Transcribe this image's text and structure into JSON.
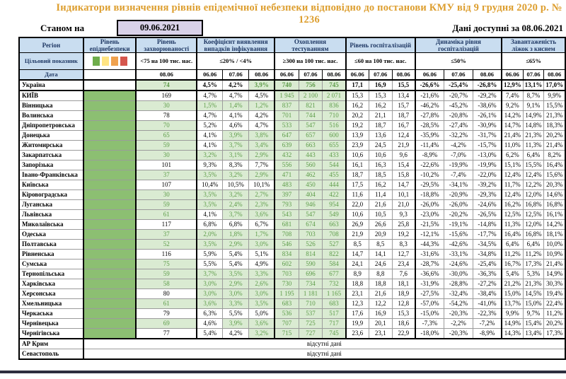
{
  "title": "Індикатори визначення рівнів епідемічної небезпеки відповідно до постанови КМУ від 9 грудня 2020 р. № 1236",
  "as_of": {
    "label": "Станом на",
    "date": "09.06.2021"
  },
  "available": {
    "label": "Дані доступні за",
    "date": "08.06.2021"
  },
  "colors": {
    "title_orange": "#dd9e2e",
    "header_blue": "#c9ddf0",
    "header_text_navy": "#1f3864",
    "date_box_purple": "#d9d2e9",
    "danger_column_green": "#8cbf72",
    "highlight_cell_green": "#daebd2",
    "highlight_text_green": "#5d9c49",
    "bottom_line": "#2e2e3e"
  },
  "columns": {
    "region": "Регіон",
    "danger": "Рівень епіднебезпеки",
    "target_row_label": "Цільовий показник",
    "date_row_label": "Дата",
    "groups": [
      {
        "key": "incidence",
        "name": "Рівень захворюваності",
        "target": "<75 на 100 тис. нас.",
        "dates": [
          "08.06"
        ]
      },
      {
        "key": "coef",
        "name": "Коефіцієнт виявлення випадків інфікування",
        "target": "≤20% / <4%",
        "dates": [
          "06.06",
          "07.06",
          "08.06"
        ]
      },
      {
        "key": "testing",
        "name": "Охоплення тестуванням",
        "target": "≥300 на 100 тис. нас.",
        "dates": [
          "06.06",
          "07.06",
          "08.06"
        ]
      },
      {
        "key": "hosp",
        "name": "Рівень госпіталізацій",
        "target": "≤60 на 100 тис. нас.",
        "dates": [
          "06.06",
          "07.06",
          "08.06"
        ]
      },
      {
        "key": "dynamics",
        "name": "Динаміка рівня госпіталізацій",
        "target": "≤50%",
        "dates": [
          "06.06",
          "07.06",
          "08.06"
        ]
      },
      {
        "key": "beds",
        "name": "Завантаженість ліжок з киснем",
        "target": "≤65%",
        "dates": [
          "06.06",
          "07.06",
          "08.06"
        ]
      }
    ]
  },
  "legend": {
    "names": [
      "green-level",
      "yellow-level",
      "orange-level",
      "red-level"
    ],
    "colors": [
      "#6fad4b",
      "#ffe483",
      "#efa14e",
      "#d5564d"
    ]
  },
  "thresholds": {
    "incidence_max": 75,
    "coef_max": 4,
    "testing_min": 300
  },
  "rows": [
    {
      "region": "Україна",
      "emphasis": true,
      "danger_green": false,
      "incidence": [
        "74"
      ],
      "coef": [
        "4,5%",
        "4,2%",
        "3,9%"
      ],
      "testing": [
        "740",
        "756",
        "745"
      ],
      "hosp": [
        "17,1",
        "16,9",
        "15,5"
      ],
      "dynamics": [
        "-26,6%",
        "-25,4%",
        "-26,8%"
      ],
      "beds": [
        "12,9%",
        "13,1%",
        "17,0%"
      ]
    },
    {
      "region": "КИЇВ",
      "danger_green": true,
      "incidence": [
        "169"
      ],
      "coef": [
        "4,7%",
        "4,7%",
        "4,5%"
      ],
      "testing": [
        "1 945",
        "2 100",
        "2 071"
      ],
      "hosp": [
        "15,3",
        "15,3",
        "13,4"
      ],
      "dynamics": [
        "-21,6%",
        "-20,7%",
        "-29,2%"
      ],
      "beds": [
        "7,4%",
        "8,7%",
        "9,9%"
      ]
    },
    {
      "region": "Вінницька",
      "danger_green": true,
      "incidence": [
        "30"
      ],
      "coef": [
        "1,5%",
        "1,4%",
        "1,2%"
      ],
      "testing": [
        "837",
        "821",
        "836"
      ],
      "hosp": [
        "16,2",
        "16,2",
        "15,7"
      ],
      "dynamics": [
        "-46,2%",
        "-45,2%",
        "-38,6%"
      ],
      "beds": [
        "9,2%",
        "9,1%",
        "15,5%"
      ]
    },
    {
      "region": "Волинська",
      "danger_green": true,
      "incidence": [
        "78"
      ],
      "coef": [
        "4,7%",
        "4,1%",
        "4,2%"
      ],
      "testing": [
        "701",
        "744",
        "710"
      ],
      "hosp": [
        "20,2",
        "21,1",
        "18,7"
      ],
      "dynamics": [
        "-27,8%",
        "-20,8%",
        "-26,1%"
      ],
      "beds": [
        "14,2%",
        "14,9%",
        "21,3%"
      ]
    },
    {
      "region": "Дніпропетровська",
      "danger_green": true,
      "incidence": [
        "70"
      ],
      "coef": [
        "5,2%",
        "4,6%",
        "4,7%"
      ],
      "testing": [
        "533",
        "547",
        "516"
      ],
      "hosp": [
        "19,2",
        "18,7",
        "16,7"
      ],
      "dynamics": [
        "-28,5%",
        "-27,4%",
        "-30,9%"
      ],
      "beds": [
        "14,7%",
        "14,8%",
        "18,3%"
      ]
    },
    {
      "region": "Донецька",
      "danger_green": true,
      "incidence": [
        "65"
      ],
      "coef": [
        "4,1%",
        "3,9%",
        "3,8%"
      ],
      "testing": [
        "647",
        "657",
        "600"
      ],
      "hosp": [
        "13,9",
        "13,6",
        "12,4"
      ],
      "dynamics": [
        "-35,9%",
        "-32,2%",
        "-31,7%"
      ],
      "beds": [
        "21,4%",
        "21,3%",
        "20,2%"
      ]
    },
    {
      "region": "Житомирська",
      "danger_green": true,
      "incidence": [
        "59"
      ],
      "coef": [
        "4,1%",
        "3,7%",
        "3,4%"
      ],
      "testing": [
        "639",
        "663",
        "655"
      ],
      "hosp": [
        "23,9",
        "24,5",
        "21,9"
      ],
      "dynamics": [
        "-11,4%",
        "-4,2%",
        "-15,7%"
      ],
      "beds": [
        "11,0%",
        "11,3%",
        "21,4%"
      ]
    },
    {
      "region": "Закарпатська",
      "danger_green": true,
      "incidence": [
        "30"
      ],
      "coef": [
        "3,2%",
        "3,1%",
        "2,9%"
      ],
      "testing": [
        "432",
        "443",
        "433"
      ],
      "hosp": [
        "10,6",
        "10,6",
        "9,6"
      ],
      "dynamics": [
        "-8,9%",
        "-7,0%",
        "-13,0%"
      ],
      "beds": [
        "6,2%",
        "6,4%",
        "8,2%"
      ]
    },
    {
      "region": "Запорізька",
      "danger_green": true,
      "incidence": [
        "101"
      ],
      "coef": [
        "9,3%",
        "8,3%",
        "7,7%"
      ],
      "testing": [
        "556",
        "560",
        "544"
      ],
      "hosp": [
        "16,1",
        "16,3",
        "15,4"
      ],
      "dynamics": [
        "-22,6%",
        "-19,9%",
        "-19,9%"
      ],
      "beds": [
        "15,1%",
        "15,5%",
        "16,4%"
      ]
    },
    {
      "region": "Івано-Франківська",
      "danger_green": true,
      "incidence": [
        "37"
      ],
      "coef": [
        "3,5%",
        "3,2%",
        "2,9%"
      ],
      "testing": [
        "471",
        "462",
        "455"
      ],
      "hosp": [
        "18,7",
        "18,5",
        "15,8"
      ],
      "dynamics": [
        "-10,2%",
        "-7,4%",
        "-22,0%"
      ],
      "beds": [
        "12,4%",
        "12,4%",
        "15,6%"
      ]
    },
    {
      "region": "Київська",
      "danger_green": true,
      "incidence": [
        "107"
      ],
      "coef": [
        "10,4%",
        "10,5%",
        "10,1%"
      ],
      "testing": [
        "483",
        "450",
        "444"
      ],
      "hosp": [
        "17,5",
        "16,2",
        "14,7"
      ],
      "dynamics": [
        "-29,5%",
        "-34,1%",
        "-39,2%"
      ],
      "beds": [
        "11,7%",
        "12,2%",
        "20,3%"
      ]
    },
    {
      "region": "Кіровоградська",
      "danger_green": true,
      "incidence": [
        "30"
      ],
      "coef": [
        "3,5%",
        "3,2%",
        "2,7%"
      ],
      "testing": [
        "397",
        "404",
        "422"
      ],
      "hosp": [
        "11,6",
        "11,4",
        "10,1"
      ],
      "dynamics": [
        "-18,8%",
        "-20,9%",
        "-29,3%"
      ],
      "beds": [
        "12,4%",
        "12,0%",
        "14,6%"
      ]
    },
    {
      "region": "Луганська",
      "danger_green": true,
      "incidence": [
        "59"
      ],
      "coef": [
        "3,5%",
        "2,4%",
        "2,3%"
      ],
      "testing": [
        "793",
        "946",
        "954"
      ],
      "hosp": [
        "22,0",
        "21,6",
        "21,0"
      ],
      "dynamics": [
        "-26,0%",
        "-26,0%",
        "-24,6%"
      ],
      "beds": [
        "16,2%",
        "16,8%",
        "16,8%"
      ]
    },
    {
      "region": "Львівська",
      "danger_green": true,
      "incidence": [
        "61"
      ],
      "coef": [
        "4,1%",
        "3,7%",
        "3,6%"
      ],
      "testing": [
        "543",
        "547",
        "549"
      ],
      "hosp": [
        "10,6",
        "10,5",
        "9,3"
      ],
      "dynamics": [
        "-23,0%",
        "-20,2%",
        "-26,5%"
      ],
      "beds": [
        "12,5%",
        "12,5%",
        "16,1%"
      ]
    },
    {
      "region": "Миколаївська",
      "danger_green": true,
      "incidence": [
        "117"
      ],
      "coef": [
        "6,8%",
        "6,8%",
        "6,7%"
      ],
      "testing": [
        "681",
        "674",
        "663"
      ],
      "hosp": [
        "26,9",
        "26,6",
        "25,8"
      ],
      "dynamics": [
        "-21,5%",
        "-19,1%",
        "-14,8%"
      ],
      "beds": [
        "11,3%",
        "12,0%",
        "14,2%"
      ]
    },
    {
      "region": "Одеська",
      "danger_green": true,
      "incidence": [
        "37"
      ],
      "coef": [
        "2,0%",
        "1,8%",
        "1,7%"
      ],
      "testing": [
        "708",
        "703",
        "708"
      ],
      "hosp": [
        "21,9",
        "20,9",
        "19,2"
      ],
      "dynamics": [
        "-12,1%",
        "-15,6%",
        "-17,7%"
      ],
      "beds": [
        "16,4%",
        "16,8%",
        "18,1%"
      ]
    },
    {
      "region": "Полтавська",
      "danger_green": true,
      "incidence": [
        "52"
      ],
      "coef": [
        "3,5%",
        "2,9%",
        "3,0%"
      ],
      "testing": [
        "546",
        "526",
        "527"
      ],
      "hosp": [
        "8,5",
        "8,5",
        "8,3"
      ],
      "dynamics": [
        "-44,3%",
        "-42,6%",
        "-34,5%"
      ],
      "beds": [
        "6,4%",
        "6,4%",
        "10,0%"
      ]
    },
    {
      "region": "Рівненська",
      "danger_green": true,
      "incidence": [
        "116"
      ],
      "coef": [
        "5,9%",
        "5,4%",
        "5,1%"
      ],
      "testing": [
        "834",
        "814",
        "822"
      ],
      "hosp": [
        "14,7",
        "14,1",
        "12,7"
      ],
      "dynamics": [
        "-31,6%",
        "-33,1%",
        "-34,8%"
      ],
      "beds": [
        "11,2%",
        "11,2%",
        "10,9%"
      ]
    },
    {
      "region": "Сумська",
      "danger_green": true,
      "incidence": [
        "75"
      ],
      "coef": [
        "5,5%",
        "5,4%",
        "4,9%"
      ],
      "testing": [
        "602",
        "590",
        "584"
      ],
      "hosp": [
        "24,1",
        "24,6",
        "23,4"
      ],
      "dynamics": [
        "-28,7%",
        "-24,6%",
        "-25,4%"
      ],
      "beds": [
        "16,7%",
        "17,3%",
        "21,4%"
      ]
    },
    {
      "region": "Тернопільська",
      "danger_green": true,
      "incidence": [
        "59"
      ],
      "coef": [
        "3,7%",
        "3,5%",
        "3,3%"
      ],
      "testing": [
        "703",
        "696",
        "677"
      ],
      "hosp": [
        "8,9",
        "8,8",
        "7,6"
      ],
      "dynamics": [
        "-36,6%",
        "-30,0%",
        "-36,3%"
      ],
      "beds": [
        "5,4%",
        "5,3%",
        "14,9%"
      ]
    },
    {
      "region": "Харківська",
      "danger_green": true,
      "incidence": [
        "58"
      ],
      "coef": [
        "3,0%",
        "2,9%",
        "2,6%"
      ],
      "testing": [
        "730",
        "734",
        "732"
      ],
      "hosp": [
        "18,8",
        "18,8",
        "18,1"
      ],
      "dynamics": [
        "-31,9%",
        "-28,8%",
        "-27,2%"
      ],
      "beds": [
        "21,2%",
        "21,3%",
        "30,3%"
      ]
    },
    {
      "region": "Херсонська",
      "danger_green": true,
      "incidence": [
        "80"
      ],
      "coef": [
        "3,0%",
        "3,0%",
        "3,0%"
      ],
      "testing": [
        "1 195",
        "1 181",
        "1 165"
      ],
      "hosp": [
        "23,1",
        "21,6",
        "18,9"
      ],
      "dynamics": [
        "-27,5%",
        "-32,4%",
        "-38,4%"
      ],
      "beds": [
        "15,0%",
        "14,5%",
        "19,4%"
      ]
    },
    {
      "region": "Хмельницька",
      "danger_green": true,
      "incidence": [
        "61"
      ],
      "coef": [
        "3,6%",
        "3,3%",
        "3,5%"
      ],
      "testing": [
        "683",
        "710",
        "683"
      ],
      "hosp": [
        "12,3",
        "12,2",
        "12,8"
      ],
      "dynamics": [
        "-57,0%",
        "-54,2%",
        "-41,0%"
      ],
      "beds": [
        "13,7%",
        "15,0%",
        "22,4%"
      ]
    },
    {
      "region": "Черкаська",
      "danger_green": true,
      "incidence": [
        "79"
      ],
      "coef": [
        "6,3%",
        "5,5%",
        "5,0%"
      ],
      "testing": [
        "536",
        "537",
        "517"
      ],
      "hosp": [
        "17,6",
        "16,9",
        "15,3"
      ],
      "dynamics": [
        "-15,0%",
        "-20,3%",
        "-22,3%"
      ],
      "beds": [
        "9,9%",
        "9,7%",
        "11,2%"
      ]
    },
    {
      "region": "Чернівецька",
      "danger_green": true,
      "incidence": [
        "69"
      ],
      "coef": [
        "4,6%",
        "3,9%",
        "3,6%"
      ],
      "testing": [
        "707",
        "725",
        "717"
      ],
      "hosp": [
        "19,9",
        "20,1",
        "18,6"
      ],
      "dynamics": [
        "-7,3%",
        "-2,2%",
        "-7,2%"
      ],
      "beds": [
        "14,9%",
        "15,4%",
        "20,2%"
      ]
    },
    {
      "region": "Чернігівська",
      "danger_green": true,
      "incidence": [
        "77"
      ],
      "coef": [
        "5,4%",
        "4,2%",
        "3,2%"
      ],
      "testing": [
        "715",
        "727",
        "745"
      ],
      "hosp": [
        "23,6",
        "23,1",
        "22,9"
      ],
      "dynamics": [
        "-18,0%",
        "-20,3%",
        "-8,9%"
      ],
      "beds": [
        "14,3%",
        "13,4%",
        "17,3%"
      ]
    }
  ],
  "no_data": {
    "text": "відсутні дані",
    "regions": [
      "АР Крим",
      "Севастополь"
    ]
  }
}
